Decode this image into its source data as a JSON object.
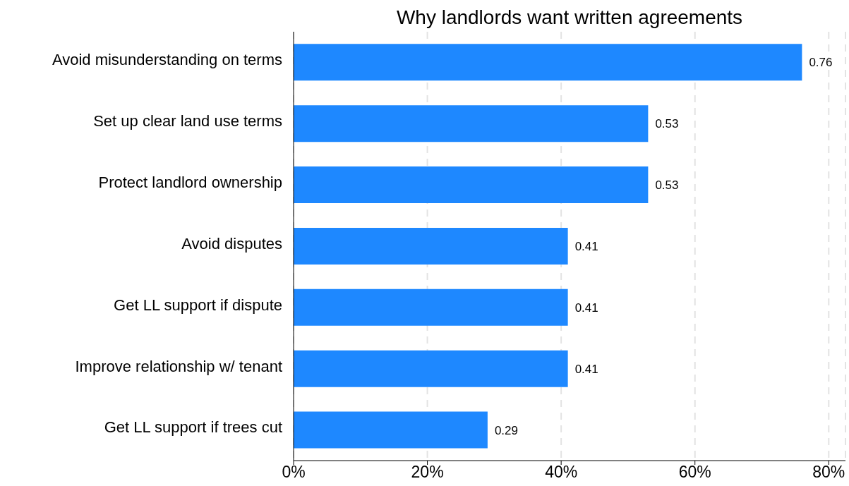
{
  "chart_data": {
    "type": "bar",
    "orientation": "horizontal",
    "title": "Why landlords want written agreements",
    "categories": [
      "Avoid misunderstanding on terms",
      "Set up clear land use terms",
      "Protect landlord ownership",
      "Avoid disputes",
      "Get LL support if dispute",
      "Improve relationship w/ tenant",
      "Get LL support if trees cut"
    ],
    "values": [
      0.76,
      0.53,
      0.53,
      0.41,
      0.41,
      0.41,
      0.29
    ],
    "color": "#1e88ff",
    "xlim": [
      0,
      0.825
    ],
    "xticks": [
      {
        "value": 0,
        "label": "0%"
      },
      {
        "value": 0.2,
        "label": "20%"
      },
      {
        "value": 0.4,
        "label": "40%"
      },
      {
        "value": 0.6,
        "label": "60%"
      },
      {
        "value": 0.8,
        "label": "80%"
      }
    ],
    "grid": "x",
    "data_labels": true
  }
}
